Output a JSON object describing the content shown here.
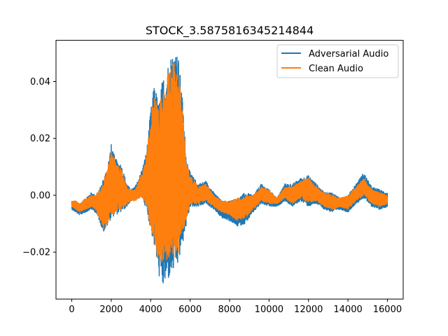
{
  "chart_data": {
    "type": "line",
    "title": "STOCK_3.5875816345214844",
    "xlabel": "",
    "ylabel": "",
    "xlim": [
      -800,
      16800
    ],
    "ylim": [
      -0.0365,
      0.0545
    ],
    "x_ticks": [
      0,
      2000,
      4000,
      6000,
      8000,
      10000,
      12000,
      14000,
      16000
    ],
    "x_tick_labels": [
      "0",
      "2000",
      "4000",
      "6000",
      "8000",
      "10000",
      "12000",
      "14000",
      "16000"
    ],
    "y_ticks": [
      -0.02,
      0.0,
      0.02,
      0.04
    ],
    "y_tick_labels": [
      "−0.02",
      "0.00",
      "0.02",
      "0.04"
    ],
    "grid": false,
    "legend_position": "top-right",
    "series": [
      {
        "name": "Adversarial Audio",
        "color": "#1f77b4",
        "envelope": {
          "x": [
            0,
            200,
            400,
            700,
            1000,
            1200,
            1400,
            1600,
            1800,
            2000,
            2200,
            2500,
            2800,
            3000,
            3200,
            3400,
            3600,
            3800,
            4000,
            4200,
            4400,
            4600,
            4800,
            5000,
            5200,
            5400,
            5600,
            5800,
            6000,
            6400,
            6800,
            7200,
            7600,
            8000,
            8400,
            8800,
            9200,
            9600,
            10000,
            10400,
            10800,
            11200,
            11600,
            12000,
            12400,
            12800,
            13200,
            13600,
            14000,
            14400,
            14800,
            15200,
            15600,
            16000
          ],
          "upper": [
            -0.002,
            -0.002,
            -0.003,
            -0.001,
            0.001,
            0.0,
            0.002,
            0.006,
            0.01,
            0.018,
            0.013,
            0.011,
            0.004,
            0.002,
            0.003,
            0.006,
            0.01,
            0.016,
            0.03,
            0.04,
            0.032,
            0.041,
            0.045,
            0.049,
            0.052,
            0.049,
            0.035,
            0.014,
            0.008,
            0.004,
            0.005,
            0.001,
            -0.002,
            -0.002,
            -0.001,
            0.001,
            0.0,
            0.004,
            0.002,
            -0.001,
            0.004,
            0.004,
            0.006,
            0.007,
            0.004,
            0.001,
            0.001,
            -0.001,
            0.0,
            0.004,
            0.008,
            0.003,
            0.002,
            0.001
          ],
          "lower": [
            -0.005,
            -0.006,
            -0.007,
            -0.006,
            -0.005,
            -0.006,
            -0.009,
            -0.013,
            -0.011,
            -0.008,
            -0.007,
            -0.006,
            -0.004,
            -0.002,
            -0.002,
            -0.001,
            -0.001,
            -0.006,
            -0.012,
            -0.019,
            -0.028,
            -0.033,
            -0.031,
            -0.029,
            -0.027,
            -0.025,
            -0.018,
            -0.011,
            -0.004,
            -0.004,
            -0.003,
            -0.005,
            -0.008,
            -0.009,
            -0.011,
            -0.01,
            -0.006,
            -0.003,
            -0.004,
            -0.004,
            -0.002,
            -0.004,
            -0.002,
            -0.004,
            -0.003,
            -0.005,
            -0.006,
            -0.005,
            -0.006,
            -0.003,
            -0.001,
            -0.004,
            -0.005,
            -0.004
          ]
        }
      },
      {
        "name": "Clean Audio",
        "color": "#ff7f0e",
        "envelope": {
          "x": [
            0,
            200,
            400,
            700,
            1000,
            1200,
            1400,
            1600,
            1800,
            2000,
            2200,
            2500,
            2800,
            3000,
            3200,
            3400,
            3600,
            3800,
            4000,
            4200,
            4400,
            4600,
            4800,
            5000,
            5200,
            5400,
            5600,
            5800,
            6000,
            6400,
            6800,
            7200,
            7600,
            8000,
            8400,
            8800,
            9200,
            9600,
            10000,
            10400,
            10800,
            11200,
            11600,
            12000,
            12400,
            12800,
            13200,
            13600,
            14000,
            14400,
            14800,
            15200,
            15600,
            16000
          ],
          "upper": [
            -0.002,
            -0.002,
            -0.003,
            -0.001,
            0.0,
            0.0,
            0.002,
            0.005,
            0.009,
            0.017,
            0.012,
            0.01,
            0.003,
            0.002,
            0.002,
            0.005,
            0.009,
            0.015,
            0.028,
            0.037,
            0.03,
            0.038,
            0.042,
            0.045,
            0.047,
            0.045,
            0.032,
            0.013,
            0.007,
            0.003,
            0.004,
            0.0,
            -0.002,
            -0.002,
            -0.001,
            0.0,
            0.0,
            0.003,
            0.002,
            -0.001,
            0.003,
            0.003,
            0.005,
            0.006,
            0.003,
            0.001,
            0.0,
            -0.001,
            0.0,
            0.003,
            0.006,
            0.002,
            0.001,
            0.0
          ],
          "lower": [
            -0.004,
            -0.005,
            -0.006,
            -0.005,
            -0.004,
            -0.005,
            -0.008,
            -0.012,
            -0.01,
            -0.007,
            -0.006,
            -0.005,
            -0.003,
            -0.002,
            -0.002,
            -0.001,
            -0.001,
            -0.005,
            -0.011,
            -0.017,
            -0.025,
            -0.026,
            -0.025,
            -0.023,
            -0.022,
            -0.021,
            -0.015,
            -0.009,
            -0.003,
            -0.003,
            -0.002,
            -0.004,
            -0.006,
            -0.007,
            -0.009,
            -0.008,
            -0.005,
            -0.002,
            -0.003,
            -0.003,
            -0.001,
            -0.003,
            -0.001,
            -0.003,
            -0.002,
            -0.004,
            -0.005,
            -0.004,
            -0.005,
            -0.002,
            0.0,
            -0.003,
            -0.004,
            -0.003
          ]
        }
      }
    ]
  }
}
